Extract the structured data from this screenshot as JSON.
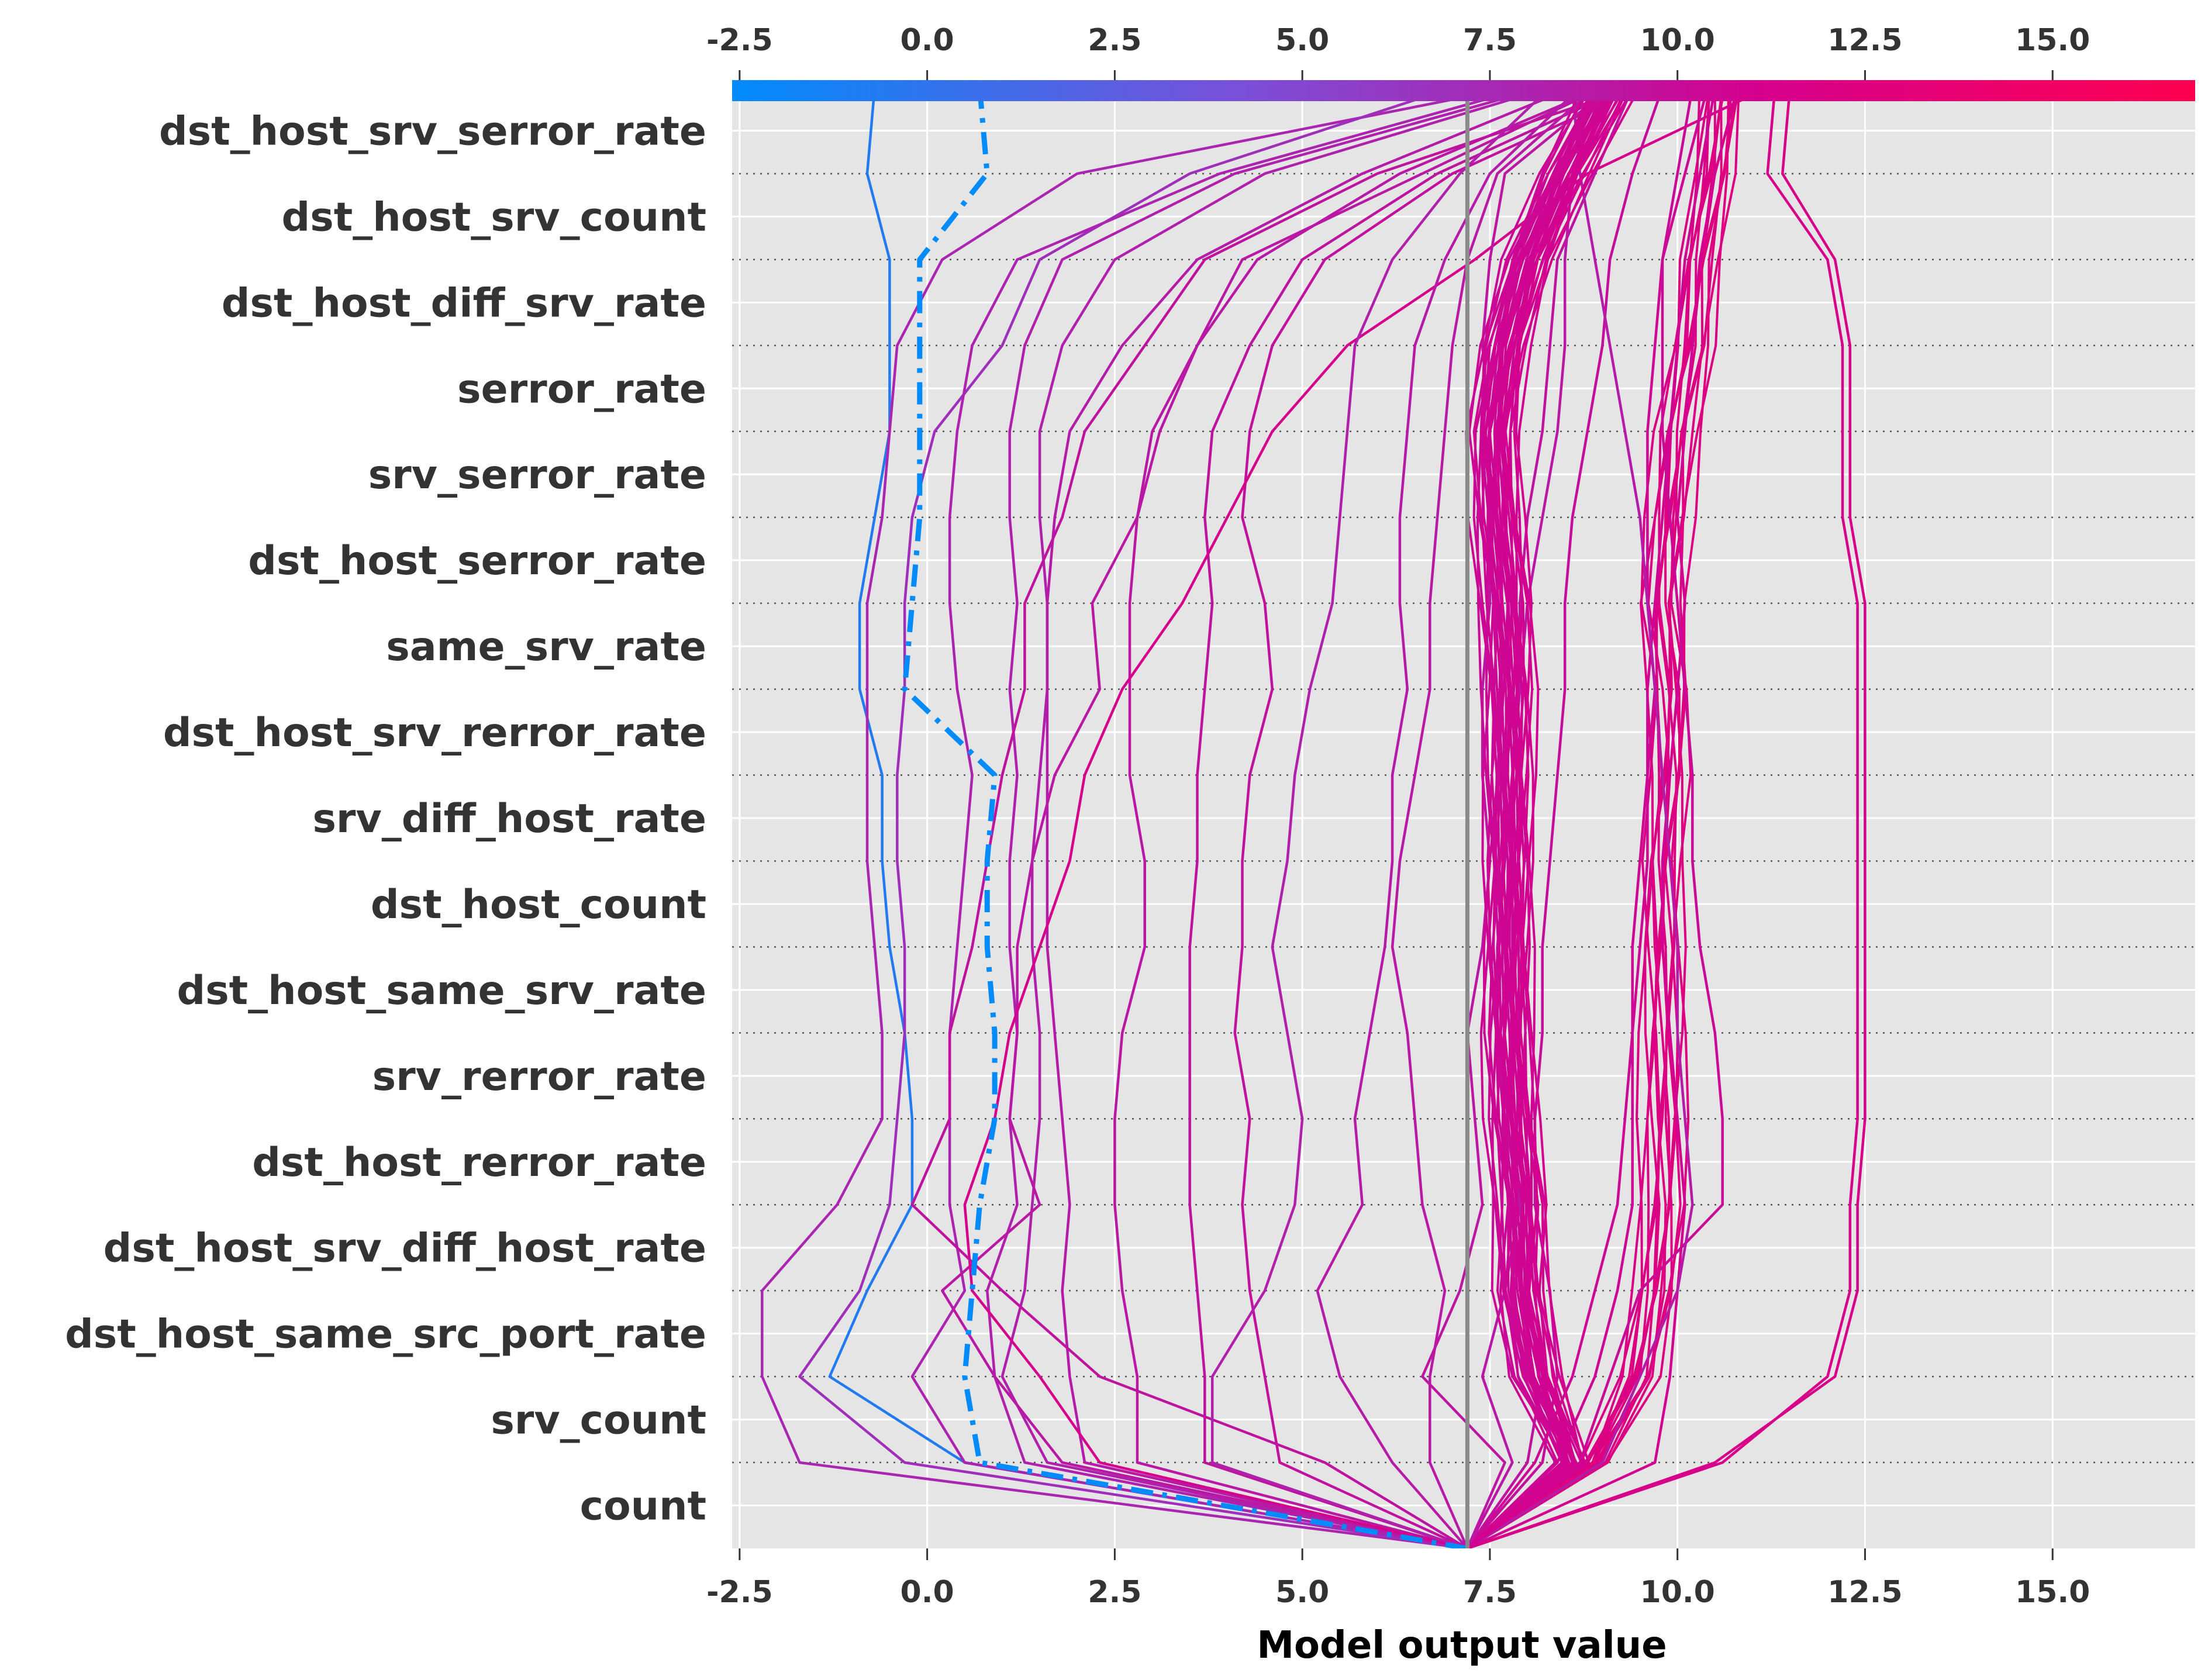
{
  "chart_data": {
    "type": "line",
    "xlabel": "Model output value",
    "xlim": [
      -2.6,
      16.9
    ],
    "x_ticks": [
      "-2.5",
      "0.0",
      "2.5",
      "5.0",
      "7.5",
      "10.0",
      "12.5",
      "15.0"
    ],
    "x_tick_values": [
      -2.5,
      0.0,
      2.5,
      5.0,
      7.5,
      10.0,
      12.5,
      15.0
    ],
    "colorbar_range": [
      -2.6,
      16.9
    ],
    "colorbar_colors": [
      "#008bfb",
      "#7b4fd8",
      "#d4008d",
      "#ff0051"
    ],
    "base_value": 7.2,
    "features": [
      "dst_host_srv_serror_rate",
      "dst_host_srv_count",
      "dst_host_diff_srv_rate",
      "serror_rate",
      "srv_serror_rate",
      "dst_host_serror_rate",
      "same_srv_rate",
      "dst_host_srv_rerror_rate",
      "srv_diff_host_rate",
      "dst_host_count",
      "dst_host_same_srv_rate",
      "srv_rerror_rate",
      "dst_host_rerror_rate",
      "dst_host_srv_diff_host_rate",
      "dst_host_same_src_port_rate",
      "srv_count",
      "count"
    ],
    "series": [
      {
        "highlight": true,
        "color": "#008bfb",
        "values": [
          7.2,
          0.7,
          0.5,
          0.6,
          0.7,
          0.9,
          0.9,
          0.8,
          0.8,
          0.9,
          -0.3,
          -0.2,
          -0.1,
          -0.1,
          -0.1,
          -0.1,
          0.8,
          0.7
        ]
      },
      {
        "values": [
          7.2,
          0.5,
          -1.3,
          -0.8,
          -0.2,
          -0.2,
          -0.3,
          -0.5,
          -0.6,
          -0.6,
          -0.9,
          -0.9,
          -0.7,
          -0.5,
          -0.5,
          -0.5,
          -0.8,
          -0.7
        ]
      },
      {
        "values": [
          7.2,
          -1.7,
          -2.2,
          -2.2,
          -1.2,
          -0.6,
          -0.6,
          -0.7,
          -0.8,
          -0.8,
          -0.8,
          -0.8,
          -0.6,
          -0.5,
          -0.4,
          0.2,
          2.0,
          7.8
        ]
      },
      {
        "values": [
          7.2,
          -0.3,
          -1.7,
          -0.9,
          -0.5,
          -0.4,
          -0.3,
          -0.3,
          -0.4,
          -0.4,
          -0.3,
          -0.3,
          -0.2,
          0.1,
          1.0,
          1.5,
          3.5,
          7.0
        ]
      },
      {
        "values": [
          7.2,
          0.5,
          -0.2,
          0.5,
          0.3,
          0.3,
          0.3,
          0.4,
          0.5,
          0.6,
          0.4,
          0.3,
          0.3,
          0.4,
          0.6,
          1.2,
          3.9,
          8.0
        ]
      },
      {
        "values": [
          7.2,
          1.3,
          0.9,
          0.8,
          1.2,
          1.1,
          1.2,
          1.1,
          1.1,
          1.2,
          1.1,
          1.2,
          1.1,
          1.1,
          1.3,
          1.8,
          4.1,
          8.2
        ]
      },
      {
        "values": [
          7.2,
          1.6,
          1.0,
          1.3,
          1.4,
          1.5,
          1.5,
          1.4,
          1.4,
          1.5,
          1.6,
          1.6,
          1.5,
          1.5,
          1.8,
          2.5,
          4.5,
          8.3
        ]
      },
      {
        "values": [
          7.2,
          2.1,
          1.9,
          1.8,
          1.9,
          1.8,
          1.7,
          1.6,
          1.6,
          1.6,
          1.6,
          1.6,
          1.7,
          1.9,
          2.6,
          3.6,
          5.8,
          8.6
        ]
      },
      {
        "values": [
          7.2,
          2.8,
          2.8,
          2.6,
          2.5,
          2.5,
          2.6,
          2.9,
          2.9,
          2.7,
          2.7,
          2.7,
          2.8,
          3.0,
          3.6,
          4.4,
          6.3,
          9.0
        ]
      },
      {
        "values": [
          7.2,
          3.7,
          3.7,
          3.6,
          3.5,
          3.5,
          3.5,
          3.5,
          3.6,
          3.6,
          3.7,
          3.8,
          3.7,
          3.8,
          4.3,
          5.0,
          6.8,
          9.3
        ]
      },
      {
        "values": [
          7.2,
          4.7,
          4.5,
          4.3,
          4.2,
          4.3,
          4.1,
          4.2,
          4.2,
          4.3,
          4.6,
          4.5,
          4.2,
          4.3,
          4.6,
          5.3,
          7.0,
          9.5
        ]
      },
      {
        "values": [
          7.2,
          1.8,
          0.9,
          0.2,
          1.5,
          1.1,
          1.2,
          1.2,
          1.4,
          1.7,
          2.3,
          2.2,
          2.8,
          3.1,
          3.6,
          4.2,
          6.6,
          9.0
        ]
      },
      {
        "values": [
          7.2,
          2.3,
          1.5,
          0.6,
          0.5,
          0.9,
          1.1,
          1.5,
          1.9,
          2.1,
          2.6,
          3.4,
          4.0,
          4.6,
          5.6,
          7.3,
          8.8,
          11.2
        ]
      },
      {
        "values": [
          7.2,
          5.3,
          2.3,
          1.0,
          -0.2,
          0.3,
          0.3,
          0.6,
          0.8,
          1.0,
          1.3,
          1.3,
          1.8,
          2.1,
          2.9,
          3.7,
          6.0,
          9.4
        ]
      },
      {
        "values": [
          7.2,
          3.8,
          3.8,
          4.5,
          4.9,
          5.0,
          4.8,
          4.6,
          4.8,
          4.9,
          5.1,
          5.4,
          5.5,
          5.6,
          5.7,
          6.2,
          7.1,
          8.3
        ]
      },
      {
        "values": [
          7.2,
          6.2,
          5.5,
          5.2,
          5.8,
          5.7,
          5.9,
          6.1,
          6.2,
          6.2,
          6.4,
          6.3,
          6.3,
          6.4,
          6.5,
          6.9,
          7.5,
          8.7
        ]
      },
      {
        "values": [
          7.2,
          6.7,
          6.7,
          6.9,
          6.6,
          6.5,
          6.4,
          6.2,
          6.3,
          6.5,
          6.7,
          6.7,
          6.8,
          6.9,
          7.0,
          7.2,
          7.6,
          8.9
        ]
      },
      {
        "values": [
          7.2,
          7.7,
          6.6,
          7.1,
          7.4,
          7.3,
          7.2,
          7.4,
          7.5,
          7.4,
          7.4,
          7.5,
          7.5,
          7.5,
          7.4,
          7.5,
          7.7,
          9.1
        ]
      },
      {
        "values": [
          7.2,
          8.0,
          8.2,
          8.0,
          7.9,
          7.8,
          7.8,
          7.8,
          7.8,
          7.8,
          7.9,
          7.9,
          8.0,
          8.2,
          8.3,
          8.4,
          8.9,
          9.4
        ]
      },
      {
        "values": [
          7.2,
          8.2,
          8.4,
          8.3,
          8.1,
          8.1,
          8.2,
          8.2,
          8.3,
          8.4,
          8.5,
          8.5,
          8.6,
          8.8,
          9.0,
          9.1,
          9.4,
          9.8
        ]
      },
      {
        "values": [
          7.2,
          8.4,
          8.9,
          9.2,
          9.4,
          9.4,
          9.4,
          9.4,
          9.5,
          9.6,
          9.6,
          9.7,
          9.8,
          9.9,
          10.0,
          10.1,
          10.3,
          10.5
        ]
      },
      {
        "values": [
          7.2,
          9.7,
          9.9,
          10.0,
          10.1,
          10.0,
          9.9,
          9.8,
          9.8,
          9.9,
          10.0,
          10.1,
          10.0,
          10.1,
          10.2,
          10.3,
          10.5,
          10.8
        ]
      },
      {
        "values": [
          7.2,
          10.6,
          12.0,
          12.3,
          12.3,
          12.4,
          12.4,
          12.4,
          12.4,
          12.4,
          12.4,
          12.4,
          12.2,
          12.2,
          12.2,
          12.0,
          11.2,
          11.3
        ]
      },
      {
        "values": [
          7.2,
          10.5,
          12.1,
          12.4,
          12.4,
          12.5,
          12.5,
          12.5,
          12.5,
          12.5,
          12.5,
          12.5,
          12.3,
          12.3,
          12.3,
          12.1,
          11.4,
          11.5
        ]
      },
      {
        "values": [
          7.2,
          8.1,
          8.6,
          8.9,
          9.2,
          9.3,
          9.4,
          9.5,
          9.6,
          9.6,
          9.7,
          9.6,
          9.6,
          9.6,
          9.7,
          9.8,
          10.1,
          10.4
        ]
      },
      {
        "values": [
          7.2,
          8.7,
          9.1,
          9.5,
          10.6,
          10.6,
          10.5,
          10.3,
          10.2,
          10.2,
          10.1,
          10.0,
          9.9,
          9.8,
          9.8,
          9.8,
          10.0,
          10.2
        ]
      },
      {
        "values": [
          7.2,
          9.0,
          9.5,
          10.0,
          10.2,
          10.1,
          10.0,
          10.0,
          9.9,
          9.8,
          9.7,
          9.6,
          9.5,
          9.3,
          9.1,
          8.9,
          8.7,
          8.6
        ]
      },
      {
        "values": [
          7.2,
          7.8,
          7.4,
          7.7,
          7.9,
          7.7,
          7.6,
          7.6,
          7.7,
          7.8,
          7.9,
          8.0,
          8.2,
          8.4,
          8.5,
          8.5,
          8.6,
          9.0
        ]
      }
    ],
    "bundle": {
      "count": 30,
      "spread": 0.55,
      "path": [
        7.2,
        8.6,
        8.1,
        7.9,
        7.9,
        7.8,
        7.75,
        7.75,
        7.75,
        7.75,
        7.75,
        7.7,
        7.6,
        7.55,
        7.7,
        8.0,
        8.5,
        9.1
      ]
    },
    "bundle2": {
      "count": 14,
      "spread": 0.45,
      "path": [
        7.2,
        8.9,
        9.5,
        9.7,
        9.8,
        9.8,
        9.8,
        9.8,
        9.8,
        9.9,
        9.9,
        9.8,
        9.9,
        10.0,
        10.2,
        10.3,
        10.5,
        10.6
      ]
    }
  }
}
